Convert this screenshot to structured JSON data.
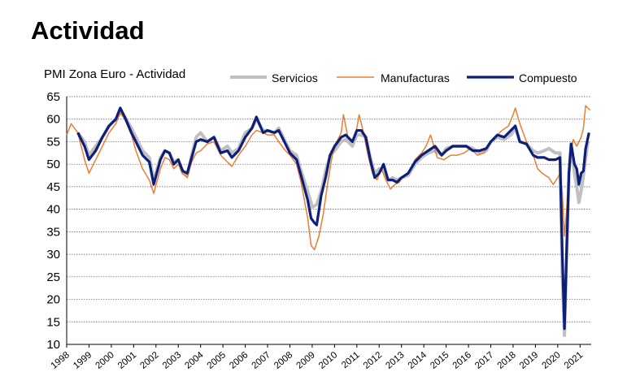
{
  "page": {
    "title": "Actividad"
  },
  "chart_data": {
    "type": "line",
    "title": "PMI Zona Euro - Actividad",
    "xlabel": "",
    "ylabel": "",
    "ylim": [
      10,
      65
    ],
    "yticks": [
      65,
      60,
      55,
      50,
      45,
      40,
      35,
      30,
      25,
      20,
      15,
      10
    ],
    "xticks": [
      "1998",
      "1999",
      "2000",
      "2001",
      "2002",
      "2003",
      "2004",
      "2005",
      "2006",
      "2007",
      "2008",
      "2009",
      "2010",
      "2011",
      "2012",
      "2013",
      "2014",
      "2015",
      "2016",
      "2017",
      "2018",
      "2019",
      "2020",
      "2021"
    ],
    "xlim": [
      1998.0,
      2021.5
    ],
    "grid": "horizontal dotted",
    "legend_position": "top",
    "series": [
      {
        "name": "Servicios",
        "color": "#c0c0c0",
        "points": [
          [
            1998.5,
            57
          ],
          [
            1998.8,
            55
          ],
          [
            1999.0,
            52
          ],
          [
            1999.3,
            54
          ],
          [
            1999.6,
            56
          ],
          [
            1999.9,
            58.5
          ],
          [
            2000.2,
            60
          ],
          [
            2000.4,
            61.5
          ],
          [
            2000.6,
            60.5
          ],
          [
            2000.9,
            58
          ],
          [
            2001.1,
            56
          ],
          [
            2001.4,
            53
          ],
          [
            2001.7,
            51.5
          ],
          [
            2001.9,
            46.5
          ],
          [
            2002.2,
            51.5
          ],
          [
            2002.4,
            53
          ],
          [
            2002.6,
            52.5
          ],
          [
            2002.8,
            50.5
          ],
          [
            2003.0,
            51
          ],
          [
            2003.2,
            48
          ],
          [
            2003.4,
            47.5
          ],
          [
            2003.6,
            52
          ],
          [
            2003.8,
            56
          ],
          [
            2004.0,
            57
          ],
          [
            2004.3,
            55
          ],
          [
            2004.6,
            56
          ],
          [
            2004.9,
            53
          ],
          [
            2005.2,
            54
          ],
          [
            2005.4,
            52.5
          ],
          [
            2005.7,
            53.5
          ],
          [
            2006.0,
            57
          ],
          [
            2006.3,
            58
          ],
          [
            2006.5,
            60
          ],
          [
            2006.8,
            57.5
          ],
          [
            2007.0,
            57.5
          ],
          [
            2007.3,
            57
          ],
          [
            2007.5,
            58
          ],
          [
            2007.8,
            55
          ],
          [
            2008.0,
            53
          ],
          [
            2008.3,
            52
          ],
          [
            2008.5,
            48.5
          ],
          [
            2008.8,
            44
          ],
          [
            2009.0,
            40.5
          ],
          [
            2009.2,
            41
          ],
          [
            2009.4,
            44
          ],
          [
            2009.6,
            48.5
          ],
          [
            2009.8,
            52
          ],
          [
            2010.0,
            53
          ],
          [
            2010.3,
            55
          ],
          [
            2010.5,
            55.5
          ],
          [
            2010.8,
            54
          ],
          [
            2011.0,
            56.5
          ],
          [
            2011.2,
            56.5
          ],
          [
            2011.4,
            56
          ],
          [
            2011.6,
            51.5
          ],
          [
            2011.8,
            48
          ],
          [
            2012.0,
            49
          ],
          [
            2012.2,
            48.5
          ],
          [
            2012.4,
            46.5
          ],
          [
            2012.6,
            47
          ],
          [
            2012.8,
            46.5
          ],
          [
            2013.0,
            47
          ],
          [
            2013.3,
            47.5
          ],
          [
            2013.6,
            50
          ],
          [
            2013.9,
            51.5
          ],
          [
            2014.2,
            52.5
          ],
          [
            2014.5,
            53
          ],
          [
            2014.8,
            52
          ],
          [
            2015.0,
            53.5
          ],
          [
            2015.3,
            54
          ],
          [
            2015.6,
            54
          ],
          [
            2015.9,
            54
          ],
          [
            2016.2,
            53.5
          ],
          [
            2016.5,
            52.5
          ],
          [
            2016.8,
            53
          ],
          [
            2017.0,
            55
          ],
          [
            2017.3,
            56
          ],
          [
            2017.6,
            55.5
          ],
          [
            2017.9,
            56.5
          ],
          [
            2018.1,
            58
          ],
          [
            2018.3,
            55
          ],
          [
            2018.6,
            54.5
          ],
          [
            2018.9,
            53
          ],
          [
            2019.1,
            52.5
          ],
          [
            2019.4,
            53
          ],
          [
            2019.6,
            53.5
          ],
          [
            2019.9,
            52.5
          ],
          [
            2020.1,
            52.5
          ],
          [
            2020.2,
            26
          ],
          [
            2020.3,
            12
          ],
          [
            2020.4,
            30
          ],
          [
            2020.5,
            48
          ],
          [
            2020.6,
            54.5
          ],
          [
            2020.75,
            48
          ],
          [
            2020.85,
            45
          ],
          [
            2020.95,
            41.5
          ],
          [
            2021.1,
            45.5
          ],
          [
            2021.2,
            49.5
          ],
          [
            2021.35,
            55
          ]
        ]
      },
      {
        "name": "Manufacturas",
        "color": "#ed7d31",
        "points": [
          [
            1998.0,
            56.5
          ],
          [
            1998.2,
            59
          ],
          [
            1998.5,
            57
          ],
          [
            1998.8,
            51
          ],
          [
            1999.0,
            48
          ],
          [
            1999.3,
            51
          ],
          [
            1999.6,
            54
          ],
          [
            1999.9,
            57
          ],
          [
            2000.2,
            59
          ],
          [
            2000.4,
            61.5
          ],
          [
            2000.6,
            60
          ],
          [
            2000.9,
            56.5
          ],
          [
            2001.1,
            53
          ],
          [
            2001.4,
            49
          ],
          [
            2001.7,
            46.5
          ],
          [
            2001.9,
            43.5
          ],
          [
            2002.2,
            49
          ],
          [
            2002.4,
            51.5
          ],
          [
            2002.6,
            51
          ],
          [
            2002.8,
            49
          ],
          [
            2003.0,
            50
          ],
          [
            2003.2,
            48
          ],
          [
            2003.4,
            47
          ],
          [
            2003.6,
            50.5
          ],
          [
            2003.8,
            52.5
          ],
          [
            2004.0,
            53
          ],
          [
            2004.3,
            54.5
          ],
          [
            2004.6,
            55
          ],
          [
            2004.9,
            52
          ],
          [
            2005.2,
            50.5
          ],
          [
            2005.4,
            49.5
          ],
          [
            2005.7,
            52
          ],
          [
            2006.0,
            54
          ],
          [
            2006.3,
            56.5
          ],
          [
            2006.5,
            57.5
          ],
          [
            2006.8,
            57
          ],
          [
            2007.0,
            56.5
          ],
          [
            2007.3,
            56.5
          ],
          [
            2007.5,
            55
          ],
          [
            2007.8,
            53
          ],
          [
            2008.0,
            52
          ],
          [
            2008.3,
            50
          ],
          [
            2008.5,
            46
          ],
          [
            2008.8,
            38
          ],
          [
            2008.95,
            32
          ],
          [
            2009.1,
            31
          ],
          [
            2009.3,
            34
          ],
          [
            2009.5,
            39
          ],
          [
            2009.7,
            46
          ],
          [
            2009.9,
            52
          ],
          [
            2010.1,
            55
          ],
          [
            2010.3,
            57
          ],
          [
            2010.4,
            61
          ],
          [
            2010.6,
            56
          ],
          [
            2010.8,
            55
          ],
          [
            2011.0,
            58
          ],
          [
            2011.1,
            61
          ],
          [
            2011.3,
            57
          ],
          [
            2011.5,
            52
          ],
          [
            2011.7,
            48
          ],
          [
            2011.9,
            46.5
          ],
          [
            2012.1,
            49
          ],
          [
            2012.3,
            46.5
          ],
          [
            2012.5,
            44.5
          ],
          [
            2012.7,
            45.5
          ],
          [
            2012.9,
            46
          ],
          [
            2013.1,
            47.5
          ],
          [
            2013.4,
            48.5
          ],
          [
            2013.6,
            51
          ],
          [
            2013.9,
            52.5
          ],
          [
            2014.1,
            54
          ],
          [
            2014.3,
            56.5
          ],
          [
            2014.6,
            51.5
          ],
          [
            2014.9,
            51
          ],
          [
            2015.2,
            52
          ],
          [
            2015.5,
            52
          ],
          [
            2015.8,
            52.5
          ],
          [
            2016.1,
            53.5
          ],
          [
            2016.4,
            52
          ],
          [
            2016.7,
            52.5
          ],
          [
            2016.9,
            54.5
          ],
          [
            2017.2,
            56
          ],
          [
            2017.5,
            57.5
          ],
          [
            2017.8,
            58.5
          ],
          [
            2018.0,
            61
          ],
          [
            2018.1,
            62.5
          ],
          [
            2018.3,
            59
          ],
          [
            2018.6,
            55
          ],
          [
            2018.9,
            52
          ],
          [
            2019.1,
            49
          ],
          [
            2019.3,
            48
          ],
          [
            2019.6,
            47
          ],
          [
            2019.8,
            45.5
          ],
          [
            2020.0,
            47
          ],
          [
            2020.1,
            48
          ],
          [
            2020.2,
            44
          ],
          [
            2020.3,
            34
          ],
          [
            2020.4,
            40
          ],
          [
            2020.5,
            49
          ],
          [
            2020.6,
            53
          ],
          [
            2020.7,
            55.5
          ],
          [
            2020.85,
            54
          ],
          [
            2020.95,
            55
          ],
          [
            2021.05,
            56
          ],
          [
            2021.15,
            58
          ],
          [
            2021.25,
            63
          ],
          [
            2021.35,
            62.5
          ],
          [
            2021.45,
            62
          ]
        ]
      },
      {
        "name": "Compuesto",
        "color": "#0c1f7a",
        "points": [
          [
            1998.5,
            57
          ],
          [
            1998.8,
            54
          ],
          [
            1999.0,
            51
          ],
          [
            1999.3,
            53
          ],
          [
            1999.6,
            56
          ],
          [
            1999.9,
            58.5
          ],
          [
            2000.2,
            60
          ],
          [
            2000.4,
            62.5
          ],
          [
            2000.6,
            60.5
          ],
          [
            2000.9,
            57
          ],
          [
            2001.1,
            55
          ],
          [
            2001.4,
            52
          ],
          [
            2001.7,
            50.5
          ],
          [
            2001.9,
            45.5
          ],
          [
            2002.2,
            51
          ],
          [
            2002.4,
            53
          ],
          [
            2002.6,
            52.5
          ],
          [
            2002.8,
            50
          ],
          [
            2003.0,
            51
          ],
          [
            2003.2,
            48.5
          ],
          [
            2003.4,
            48
          ],
          [
            2003.6,
            51.5
          ],
          [
            2003.8,
            55
          ],
          [
            2004.0,
            55.5
          ],
          [
            2004.3,
            55
          ],
          [
            2004.6,
            56
          ],
          [
            2004.9,
            52.5
          ],
          [
            2005.2,
            53
          ],
          [
            2005.4,
            51.5
          ],
          [
            2005.7,
            53
          ],
          [
            2006.0,
            56
          ],
          [
            2006.3,
            58
          ],
          [
            2006.5,
            60.5
          ],
          [
            2006.8,
            57
          ],
          [
            2007.0,
            57.5
          ],
          [
            2007.3,
            57
          ],
          [
            2007.5,
            57.5
          ],
          [
            2007.8,
            54.5
          ],
          [
            2008.0,
            52.5
          ],
          [
            2008.3,
            51
          ],
          [
            2008.5,
            47.5
          ],
          [
            2008.8,
            42
          ],
          [
            2008.95,
            38
          ],
          [
            2009.1,
            37
          ],
          [
            2009.2,
            36.5
          ],
          [
            2009.4,
            43
          ],
          [
            2009.6,
            47
          ],
          [
            2009.8,
            52
          ],
          [
            2010.0,
            54
          ],
          [
            2010.3,
            56
          ],
          [
            2010.5,
            56.5
          ],
          [
            2010.8,
            55
          ],
          [
            2011.0,
            57.5
          ],
          [
            2011.2,
            57.5
          ],
          [
            2011.4,
            56
          ],
          [
            2011.6,
            51
          ],
          [
            2011.8,
            47
          ],
          [
            2012.0,
            48
          ],
          [
            2012.2,
            50
          ],
          [
            2012.4,
            46.5
          ],
          [
            2012.6,
            46.5
          ],
          [
            2012.8,
            46
          ],
          [
            2013.0,
            47
          ],
          [
            2013.3,
            48
          ],
          [
            2013.6,
            50.5
          ],
          [
            2013.9,
            52
          ],
          [
            2014.2,
            53
          ],
          [
            2014.5,
            54
          ],
          [
            2014.8,
            52
          ],
          [
            2015.0,
            53
          ],
          [
            2015.3,
            54
          ],
          [
            2015.6,
            54
          ],
          [
            2015.9,
            54
          ],
          [
            2016.2,
            53
          ],
          [
            2016.5,
            53
          ],
          [
            2016.8,
            53.5
          ],
          [
            2017.0,
            55
          ],
          [
            2017.3,
            56.5
          ],
          [
            2017.6,
            56
          ],
          [
            2017.9,
            57.5
          ],
          [
            2018.1,
            58.5
          ],
          [
            2018.3,
            55
          ],
          [
            2018.6,
            54.5
          ],
          [
            2018.9,
            52
          ],
          [
            2019.1,
            51.5
          ],
          [
            2019.4,
            51.5
          ],
          [
            2019.6,
            51
          ],
          [
            2019.9,
            51
          ],
          [
            2020.1,
            51.5
          ],
          [
            2020.2,
            31
          ],
          [
            2020.3,
            13.5
          ],
          [
            2020.4,
            31
          ],
          [
            2020.5,
            48
          ],
          [
            2020.6,
            54.5
          ],
          [
            2020.75,
            50
          ],
          [
            2020.85,
            49
          ],
          [
            2020.95,
            45.5
          ],
          [
            2021.05,
            48
          ],
          [
            2021.15,
            48.5
          ],
          [
            2021.25,
            53.5
          ],
          [
            2021.4,
            57
          ]
        ]
      }
    ]
  }
}
